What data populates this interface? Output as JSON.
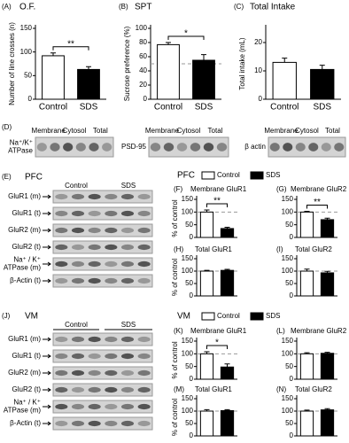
{
  "chart_data": [
    {
      "type": "bar",
      "label": "(A)",
      "title": "O.F.",
      "ylabel": "Number of line crosses (n)",
      "categories": [
        "Control",
        "SDS"
      ],
      "values": [
        92,
        63
      ],
      "errors": [
        6,
        6
      ],
      "colors": [
        "#ffffff",
        "#000000"
      ],
      "ylim": [
        0,
        150
      ],
      "yticks": [
        0,
        50,
        100,
        150
      ],
      "significance": "**"
    },
    {
      "type": "bar",
      "label": "(B)",
      "title": "SPT",
      "ylabel": "Sucrose preference (%)",
      "categories": [
        "Control",
        "SDS"
      ],
      "values": [
        77,
        55
      ],
      "errors": [
        3,
        8
      ],
      "colors": [
        "#ffffff",
        "#000000"
      ],
      "ylim": [
        0,
        100
      ],
      "yticks": [
        0,
        20,
        40,
        60,
        80,
        100
      ],
      "refline": 50,
      "significance": "*"
    },
    {
      "type": "bar",
      "label": "(C)",
      "title": "Total Intake",
      "ylabel": "Total intake (mL)",
      "categories": [
        "Control",
        "SDS"
      ],
      "values": [
        13,
        10.5
      ],
      "errors": [
        1.5,
        1.5
      ],
      "colors": [
        "#ffffff",
        "#000000"
      ],
      "ylim": [
        0,
        25
      ],
      "yticks": [
        0,
        10,
        20
      ]
    },
    {
      "type": "bar",
      "label": "(F)",
      "title": "Membrane GluR1",
      "ylabel": "% of control",
      "values": [
        100,
        35
      ],
      "errors": [
        8,
        5
      ],
      "colors": [
        "#ffffff",
        "#000000"
      ],
      "ylim": [
        0,
        150
      ],
      "yticks": [
        0,
        50,
        100,
        150
      ],
      "refline": 100,
      "significance": "**"
    },
    {
      "type": "bar",
      "label": "(G)",
      "title": "Membrane GluR2",
      "values": [
        100,
        70
      ],
      "errors": [
        3,
        6
      ],
      "colors": [
        "#ffffff",
        "#000000"
      ],
      "ylim": [
        0,
        150
      ],
      "yticks": [
        0,
        50,
        100,
        150
      ],
      "refline": 100,
      "significance": "**"
    },
    {
      "type": "bar",
      "label": "(H)",
      "title": "Total GluR1",
      "ylabel": "% of control",
      "values": [
        100,
        103
      ],
      "errors": [
        3,
        4
      ],
      "colors": [
        "#ffffff",
        "#000000"
      ],
      "ylim": [
        0,
        150
      ],
      "yticks": [
        0,
        50,
        100,
        150
      ],
      "refline": 100
    },
    {
      "type": "bar",
      "label": "(I)",
      "title": "Total GluR2",
      "values": [
        100,
        93
      ],
      "errors": [
        8,
        6
      ],
      "colors": [
        "#ffffff",
        "#000000"
      ],
      "ylim": [
        0,
        150
      ],
      "yticks": [
        0,
        50,
        100,
        150
      ],
      "refline": 100
    },
    {
      "type": "bar",
      "label": "(K)",
      "title": "Membrane GluR1",
      "ylabel": "% of control",
      "values": [
        100,
        48
      ],
      "errors": [
        8,
        12
      ],
      "colors": [
        "#ffffff",
        "#000000"
      ],
      "ylim": [
        0,
        150
      ],
      "yticks": [
        0,
        50,
        100,
        150
      ],
      "refline": 100,
      "significance": "*"
    },
    {
      "type": "bar",
      "label": "(L)",
      "title": "Membrane GluR2",
      "values": [
        100,
        102
      ],
      "errors": [
        4,
        4
      ],
      "colors": [
        "#ffffff",
        "#000000"
      ],
      "ylim": [
        0,
        150
      ],
      "yticks": [
        0,
        50,
        100,
        150
      ],
      "refline": 100
    },
    {
      "type": "bar",
      "label": "(M)",
      "title": "Total GluR1",
      "ylabel": "% of control",
      "values": [
        100,
        102
      ],
      "errors": [
        6,
        4
      ],
      "colors": [
        "#ffffff",
        "#000000"
      ],
      "ylim": [
        0,
        150
      ],
      "yticks": [
        0,
        50,
        100,
        150
      ],
      "refline": 100
    },
    {
      "type": "bar",
      "label": "(N)",
      "title": "Total GluR2",
      "values": [
        100,
        105
      ],
      "errors": [
        4,
        5
      ],
      "colors": [
        "#ffffff",
        "#000000"
      ],
      "ylim": [
        0,
        150
      ],
      "yticks": [
        0,
        50,
        100,
        150
      ],
      "refline": 100
    }
  ],
  "sections": [
    {
      "name": "PFC",
      "legend": [
        "Control",
        "SDS"
      ]
    },
    {
      "name": "VM",
      "legend": [
        "Control",
        "SDS"
      ]
    }
  ],
  "blot_d": {
    "label": "(D)",
    "panels": [
      {
        "protein": [
          "Na⁺/K⁺",
          "ATPase"
        ],
        "columns": [
          "Membrane",
          "Cytosol",
          "Total"
        ]
      },
      {
        "protein": [
          "PSD-95"
        ],
        "columns": [
          "Membrane",
          "Cytosol",
          "Total"
        ]
      },
      {
        "protein": [
          "β actin"
        ],
        "columns": [
          "Membrane",
          "Cytosol",
          "Total"
        ]
      }
    ]
  },
  "blot_e": {
    "label": "(E)",
    "region": "PFC",
    "groups": [
      "Control",
      "SDS"
    ],
    "rows": [
      [
        "GluR1 (m)"
      ],
      [
        "GluR1 (t)"
      ],
      [
        "GluR2 (m)"
      ],
      [
        "GluR2 (t)"
      ],
      [
        "Na⁺ / K⁺",
        "ATPase (m)"
      ],
      [
        "β-Actin (t)"
      ]
    ]
  },
  "blot_j": {
    "label": "(J)",
    "region": "VM",
    "groups": [
      "Control",
      "SDS"
    ],
    "rows": [
      [
        "GluR1 (m)"
      ],
      [
        "GluR1 (t)"
      ],
      [
        "GluR2 (m)"
      ],
      [
        "GluR2 (t)"
      ],
      [
        "Na⁺ / K⁺",
        "ATPase (m)"
      ],
      [
        "β-Actin (t)"
      ]
    ]
  }
}
